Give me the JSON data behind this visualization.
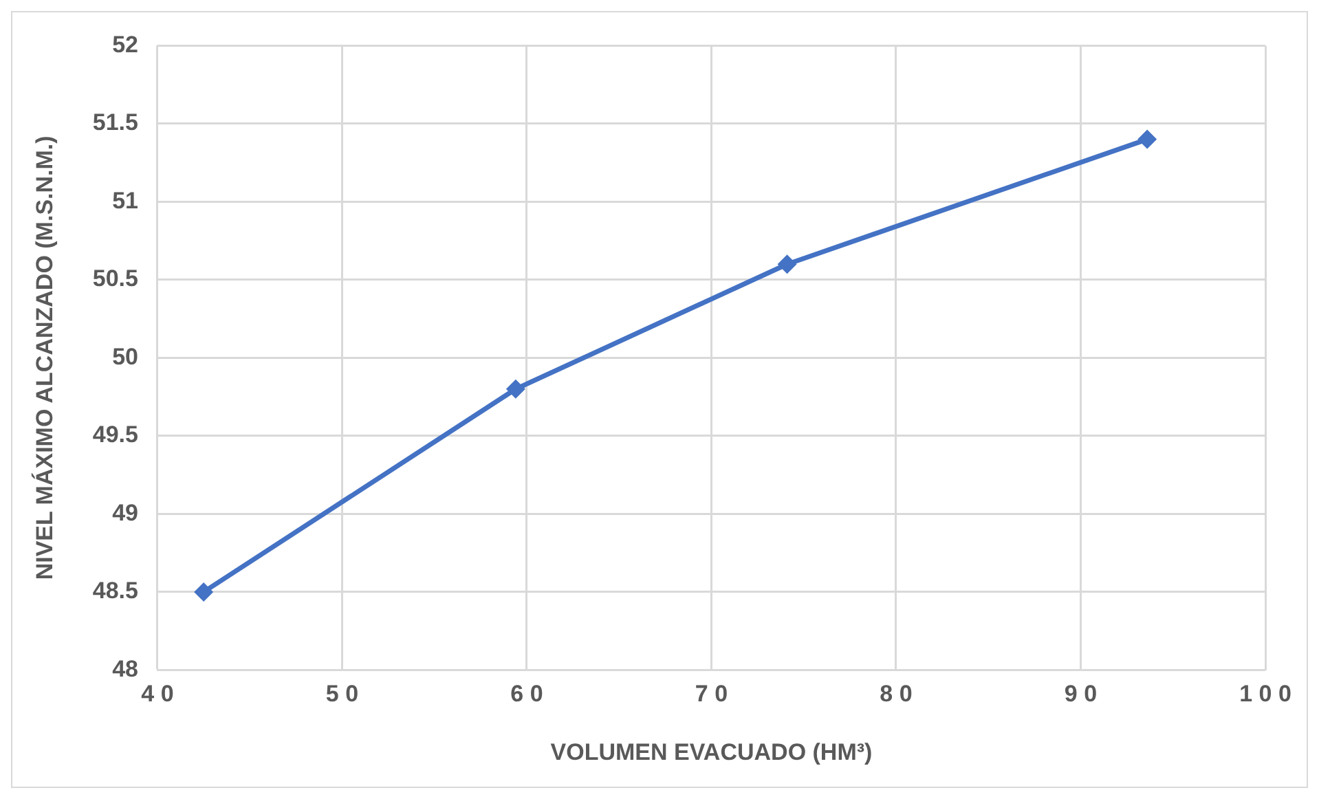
{
  "chart_data": {
    "type": "scatter",
    "xlabel": "VOLUMEN EVACUADO (HM³)",
    "ylabel": "NIVEL MÁXIMO ALCANZADO (M.S.N.M.)",
    "series": [
      {
        "type": "line",
        "color": "#4472c4",
        "x": [
          42.5,
          59.4,
          74.1,
          93.6
        ],
        "values": [
          48.5,
          49.8,
          50.6,
          51.4
        ]
      }
    ],
    "xlim": [
      40,
      100
    ],
    "xticks": [
      40,
      50,
      60,
      70,
      80,
      90,
      100
    ],
    "ylim": [
      48,
      52
    ],
    "yticks": [
      48,
      48.5,
      49,
      49.5,
      50,
      50.5,
      51,
      51.5,
      52
    ],
    "grid": true,
    "legend": false,
    "marker": "diamond",
    "line_style": "solid"
  }
}
